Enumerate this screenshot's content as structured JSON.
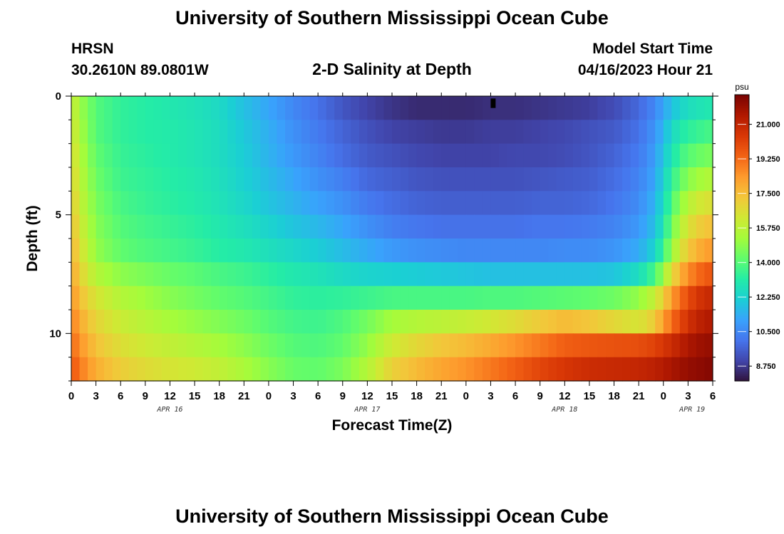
{
  "page": {
    "title": "University of Southern Mississippi Ocean Cube",
    "footer_title": "University of Southern Mississippi Ocean Cube"
  },
  "header": {
    "station": "HRSN",
    "location": "30.2610N  89.0801W",
    "plot_title": "2-D Salinity at Depth",
    "model_start_label": "Model Start Time",
    "model_start_value": "04/16/2023 Hour 21"
  },
  "colorbar": {
    "unit": "psu",
    "ticks": [
      "21.000",
      "19.250",
      "17.500",
      "15.750",
      "14.000",
      "12.250",
      "10.500",
      "8.750"
    ],
    "min": 8.0,
    "max": 22.5
  },
  "colors": {
    "colormap": [
      "#30123b",
      "#4145ab",
      "#4675ed",
      "#39a2fc",
      "#1bcfd4",
      "#24eca6",
      "#61fc6c",
      "#a4fc3b",
      "#d1e834",
      "#f3c63a",
      "#fe9b2d",
      "#f36315",
      "#d93806",
      "#b11901",
      "#7a0402"
    ]
  },
  "chart_data": {
    "type": "heatmap",
    "title": "2-D Salinity at Depth",
    "xlabel": "Forecast Time(Z)",
    "ylabel": "Depth (ft)",
    "x_tick_labels": [
      "0",
      "3",
      "6",
      "9",
      "12",
      "15",
      "18",
      "21",
      "0",
      "3",
      "6",
      "9",
      "12",
      "15",
      "18",
      "21",
      "0",
      "3",
      "6",
      "9",
      "12",
      "15",
      "18",
      "21",
      "0",
      "3",
      "6"
    ],
    "day_labels": [
      "APR 16",
      "APR 17",
      "APR 18",
      "APR 19"
    ],
    "day_label_hours": [
      12,
      36,
      60,
      75.5
    ],
    "y_ticks": [
      0,
      5,
      10
    ],
    "x_range_hours": [
      0,
      78
    ],
    "y_range_ft": [
      0,
      12
    ],
    "value_unit": "psu",
    "keyframes_hours": [
      0,
      1,
      3,
      6,
      9,
      12,
      15,
      18,
      21,
      24,
      27,
      30,
      33,
      36,
      39,
      42,
      45,
      48,
      51,
      54,
      57,
      60,
      63,
      66,
      69,
      71,
      72,
      73,
      74,
      75,
      76,
      78
    ],
    "depth_layers_ft": [
      0.5,
      1.5,
      2.5,
      3.5,
      4.5,
      5.5,
      6.5,
      7.5,
      8.5,
      9.5,
      10.5,
      11.5
    ],
    "salinity_keyframes": [
      [
        16.2,
        15.2,
        14.0,
        13.4,
        13.2,
        13.0,
        12.8,
        12.5,
        11.8,
        11.2,
        10.5,
        10.0,
        9.4,
        9.0,
        8.7,
        8.5,
        8.5,
        8.5,
        8.6,
        8.6,
        8.7,
        8.8,
        8.9,
        9.2,
        9.8,
        10.5,
        11.2,
        11.8,
        12.3,
        12.6,
        12.8,
        13.0
      ],
      [
        16.5,
        15.4,
        14.0,
        13.4,
        13.2,
        13.1,
        12.9,
        12.6,
        12.0,
        11.4,
        10.7,
        10.2,
        9.7,
        9.3,
        9.0,
        8.9,
        8.8,
        8.8,
        8.9,
        8.9,
        9.0,
        9.1,
        9.3,
        9.5,
        10.0,
        10.8,
        11.6,
        12.4,
        13.0,
        13.3,
        13.5,
        13.8
      ],
      [
        16.8,
        15.6,
        14.2,
        13.5,
        13.3,
        13.1,
        12.9,
        12.6,
        12.1,
        11.5,
        10.9,
        10.4,
        9.9,
        9.5,
        9.3,
        9.1,
        9.0,
        9.0,
        9.0,
        9.1,
        9.1,
        9.2,
        9.4,
        9.7,
        10.2,
        11.0,
        12.0,
        12.8,
        13.6,
        14.0,
        14.3,
        14.6
      ],
      [
        17.0,
        15.8,
        14.4,
        13.6,
        13.4,
        13.2,
        13.0,
        12.7,
        12.2,
        11.7,
        11.2,
        10.7,
        10.3,
        9.8,
        9.6,
        9.4,
        9.3,
        9.3,
        9.3,
        9.3,
        9.4,
        9.5,
        9.6,
        9.9,
        10.4,
        11.2,
        12.3,
        13.3,
        14.2,
        14.8,
        15.2,
        15.6
      ],
      [
        17.3,
        16.0,
        14.6,
        13.8,
        13.5,
        13.3,
        13.1,
        12.8,
        12.4,
        11.9,
        11.5,
        11.1,
        10.7,
        10.2,
        9.9,
        9.7,
        9.6,
        9.6,
        9.6,
        9.6,
        9.7,
        9.7,
        9.8,
        10.1,
        10.6,
        11.5,
        12.6,
        13.8,
        14.9,
        15.6,
        16.2,
        16.6
      ],
      [
        17.6,
        16.3,
        14.8,
        14.0,
        13.7,
        13.5,
        13.3,
        13.0,
        12.7,
        12.3,
        11.9,
        11.6,
        11.2,
        10.7,
        10.3,
        10.1,
        10.0,
        10.0,
        10.0,
        10.0,
        10.1,
        10.1,
        10.2,
        10.4,
        10.9,
        11.8,
        13.0,
        14.3,
        15.6,
        16.4,
        17.0,
        17.5
      ],
      [
        17.9,
        16.6,
        15.0,
        14.2,
        13.9,
        13.7,
        13.5,
        13.2,
        13.0,
        12.7,
        12.4,
        12.1,
        11.7,
        11.3,
        10.9,
        10.7,
        10.6,
        10.5,
        10.5,
        10.5,
        10.5,
        10.6,
        10.6,
        10.8,
        11.3,
        12.3,
        13.6,
        15.0,
        16.3,
        17.2,
        17.8,
        18.4
      ],
      [
        18.2,
        17.0,
        15.6,
        14.9,
        14.6,
        14.3,
        14.1,
        13.8,
        13.6,
        13.3,
        13.0,
        12.8,
        12.5,
        12.3,
        12.2,
        12.1,
        12.0,
        11.9,
        11.8,
        11.8,
        11.8,
        11.8,
        11.8,
        11.9,
        12.6,
        13.8,
        15.2,
        16.6,
        17.8,
        18.6,
        19.2,
        19.8
      ],
      [
        18.6,
        17.5,
        16.4,
        15.6,
        15.2,
        14.8,
        14.5,
        14.2,
        14.0,
        13.7,
        13.4,
        13.3,
        13.4,
        13.6,
        13.8,
        13.8,
        13.8,
        13.8,
        13.9,
        13.9,
        14.0,
        14.1,
        14.2,
        14.4,
        15.0,
        16.0,
        17.1,
        18.2,
        19.2,
        19.9,
        20.5,
        21.0
      ],
      [
        19.0,
        18.0,
        16.9,
        16.1,
        15.7,
        15.3,
        15.0,
        14.7,
        14.4,
        14.0,
        13.7,
        13.6,
        13.9,
        14.5,
        15.3,
        15.6,
        15.8,
        16.0,
        16.3,
        16.7,
        17.2,
        17.6,
        17.3,
        16.8,
        16.4,
        17.2,
        18.3,
        19.2,
        20.0,
        20.6,
        21.1,
        21.5
      ],
      [
        19.4,
        18.5,
        17.4,
        16.6,
        16.2,
        15.9,
        15.6,
        15.3,
        14.9,
        14.4,
        14.0,
        13.9,
        14.2,
        15.0,
        16.2,
        16.8,
        17.3,
        17.6,
        18.0,
        18.5,
        19.0,
        19.5,
        19.7,
        19.8,
        19.9,
        20.2,
        20.5,
        20.8,
        21.2,
        21.5,
        21.8,
        22.0
      ],
      [
        19.8,
        19.0,
        17.9,
        17.1,
        16.7,
        16.4,
        16.2,
        15.9,
        15.4,
        14.8,
        14.3,
        14.2,
        14.6,
        15.6,
        17.0,
        17.6,
        18.1,
        18.5,
        19.0,
        19.5,
        20.1,
        20.5,
        20.8,
        20.9,
        21.0,
        21.2,
        21.4,
        21.6,
        21.8,
        22.0,
        22.1,
        22.3
      ]
    ],
    "marker_hours": [
      51,
      51.6
    ],
    "marker_depth_ft": [
      0.1,
      0.5
    ]
  }
}
